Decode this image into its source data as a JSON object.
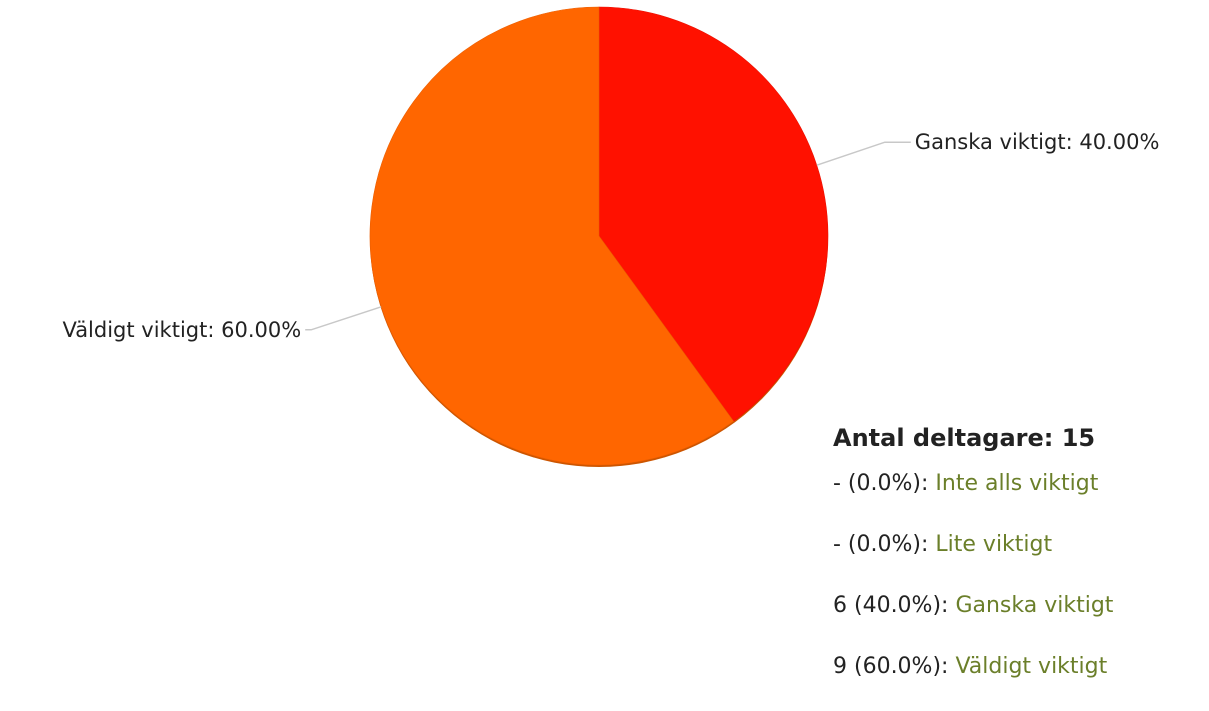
{
  "chart_data": {
    "type": "pie",
    "start": "12 o'clock, clockwise",
    "slices": [
      {
        "label": "Ganska viktigt: 40.00%",
        "value": 40.0,
        "color": "#ff1100"
      },
      {
        "label": "Väldigt viktigt: 60.00%",
        "value": 60.0,
        "color": "#ff6600"
      }
    ]
  },
  "summary": {
    "total_label": "Antal deltagare: 15",
    "rows": [
      {
        "count": "- (0.0%): ",
        "answer": "Inte alls viktigt"
      },
      {
        "count": "- (0.0%): ",
        "answer": "Lite viktigt"
      },
      {
        "count": "6 (40.0%): ",
        "answer": "Ganska viktigt"
      },
      {
        "count": "9 (60.0%): ",
        "answer": "Väldigt viktigt"
      }
    ],
    "answer_color": "#6b7f2a"
  }
}
